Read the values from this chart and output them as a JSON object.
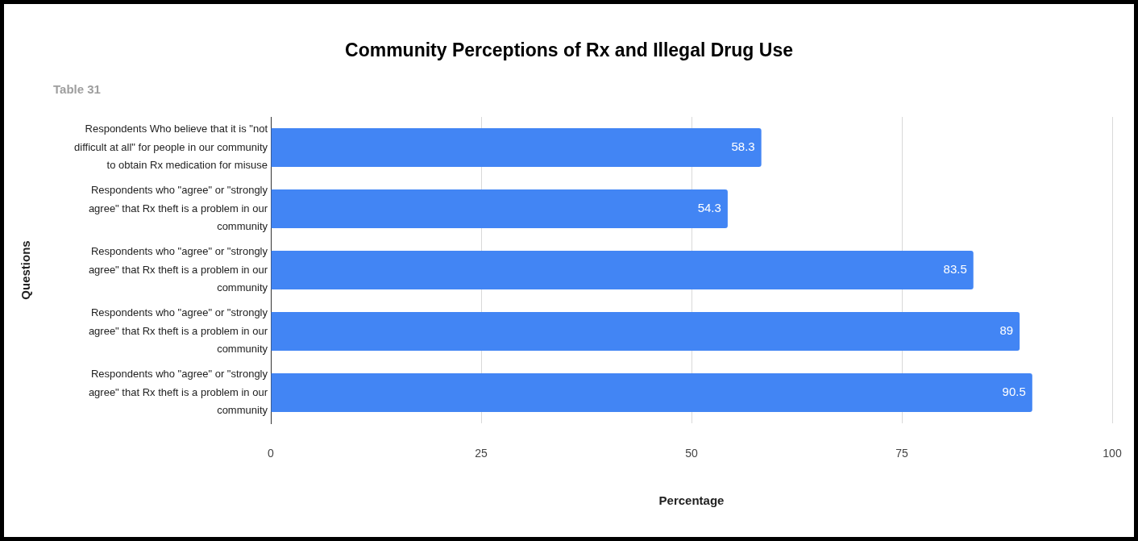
{
  "chart_data": {
    "type": "bar",
    "orientation": "horizontal",
    "title": "Community Perceptions of Rx and Illegal Drug Use",
    "subtitle": "Table 31",
    "xlabel": "Percentage",
    "ylabel": "Questions",
    "categories": [
      "Respondents Who believe that it is \"not difficult at all\" for people in our community to obtain Rx medication for misuse",
      "Respondents who \"agree\" or \"strongly agree\" that Rx theft is a problem in our community",
      "Respondents who \"agree\" or \"strongly agree\" that Rx theft is a problem in our community",
      "Respondents who \"agree\" or \"strongly agree\" that Rx theft is a problem in our community",
      "Respondents who \"agree\" or \"strongly agree\" that Rx theft is a problem in our community"
    ],
    "values": [
      58.3,
      54.3,
      83.5,
      89,
      90.5
    ],
    "color": "#4285f4",
    "xlim": [
      0,
      100
    ],
    "xticks": [
      0,
      25,
      50,
      75,
      100
    ],
    "grid": "x",
    "data_labels": true
  }
}
